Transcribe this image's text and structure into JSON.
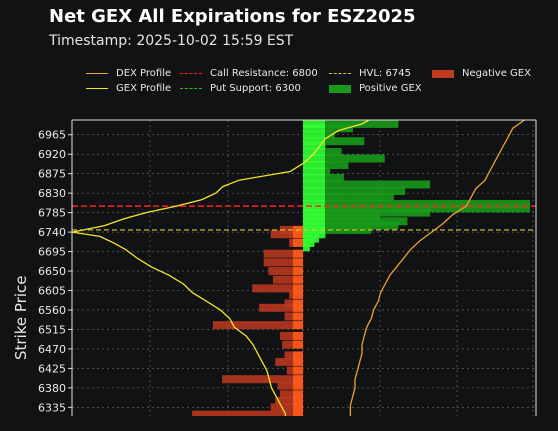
{
  "chart_data": {
    "type": "bar",
    "title": "Net GEX All Expirations for ESZ2025",
    "subtitle": "Timestamp: 2025-10-02 15:59 EST",
    "xlabel": "",
    "ylabel": "Strike Price",
    "orientation": "horizontal",
    "grid": true,
    "legend_position": "top",
    "strike_ticks": [
      6965,
      6920,
      6875,
      6830,
      6785,
      6740,
      6695,
      6650,
      6605,
      6560,
      6515,
      6470,
      6425,
      6380,
      6335
    ],
    "strike_range": [
      6315,
      6999
    ],
    "gex_xlim": [
      -100,
      100
    ],
    "profile_xlim": [
      -1,
      1
    ],
    "legend": {
      "dex_profile": "DEX Profile",
      "gex_profile": "GEX Profile",
      "call_resistance": "Call Resistance: 6800",
      "put_support": "Put Support: 6300",
      "hvl": "HVL: 6745",
      "positive_gex": "Positive GEX",
      "negative_gex": "Negative GEX"
    },
    "levels": {
      "call_resistance": 6800,
      "put_support": 6300,
      "hvl": 6745
    },
    "colors": {
      "background": "#111214",
      "dex_profile": "#f0a030",
      "gex_profile": "#f2e62a",
      "call_resistance": "#ff2020",
      "put_support": "#22c022",
      "hvl": "#d8c833",
      "positive_gex": "#1a9a1a",
      "negative_gex": "#c03a20",
      "grid": "#9a9a9a"
    },
    "positive_gex": [
      {
        "strike": 6990,
        "value": 42
      },
      {
        "strike": 6980,
        "value": 22
      },
      {
        "strike": 6965,
        "value": 14
      },
      {
        "strike": 6950,
        "value": 27
      },
      {
        "strike": 6940,
        "value": 10
      },
      {
        "strike": 6925,
        "value": 17
      },
      {
        "strike": 6910,
        "value": 36
      },
      {
        "strike": 6895,
        "value": 20
      },
      {
        "strike": 6880,
        "value": 12
      },
      {
        "strike": 6865,
        "value": 18
      },
      {
        "strike": 6850,
        "value": 56
      },
      {
        "strike": 6835,
        "value": 45
      },
      {
        "strike": 6820,
        "value": 40
      },
      {
        "strike": 6805,
        "value": 100
      },
      {
        "strike": 6795,
        "value": 100
      },
      {
        "strike": 6785,
        "value": 56
      },
      {
        "strike": 6775,
        "value": 34
      },
      {
        "strike": 6765,
        "value": 46
      },
      {
        "strike": 6755,
        "value": 42
      },
      {
        "strike": 6745,
        "value": 30
      },
      {
        "strike": 6735,
        "value": 10
      },
      {
        "strike": 6725,
        "value": 7
      },
      {
        "strike": 6715,
        "value": 5
      },
      {
        "strike": 6705,
        "value": 3
      }
    ],
    "negative_gex": [
      {
        "strike": 6745,
        "value": -10
      },
      {
        "strike": 6735,
        "value": -14
      },
      {
        "strike": 6715,
        "value": -6
      },
      {
        "strike": 6690,
        "value": -17
      },
      {
        "strike": 6670,
        "value": -17
      },
      {
        "strike": 6650,
        "value": -15
      },
      {
        "strike": 6630,
        "value": -13
      },
      {
        "strike": 6610,
        "value": -22
      },
      {
        "strike": 6595,
        "value": -6
      },
      {
        "strike": 6575,
        "value": -8
      },
      {
        "strike": 6565,
        "value": -19
      },
      {
        "strike": 6545,
        "value": -8
      },
      {
        "strike": 6525,
        "value": -39
      },
      {
        "strike": 6500,
        "value": -10
      },
      {
        "strike": 6480,
        "value": -9
      },
      {
        "strike": 6455,
        "value": -8
      },
      {
        "strike": 6440,
        "value": -12
      },
      {
        "strike": 6420,
        "value": -7
      },
      {
        "strike": 6400,
        "value": -35
      },
      {
        "strike": 6385,
        "value": -11
      },
      {
        "strike": 6365,
        "value": -10
      },
      {
        "strike": 6350,
        "value": -12
      },
      {
        "strike": 6335,
        "value": -14
      },
      {
        "strike": 6318,
        "value": -48
      }
    ],
    "gex_profile": [
      {
        "strike": 6999,
        "value": 0.28
      },
      {
        "strike": 6990,
        "value": 0.25
      },
      {
        "strike": 6975,
        "value": 0.15
      },
      {
        "strike": 6955,
        "value": 0.09
      },
      {
        "strike": 6940,
        "value": 0.07
      },
      {
        "strike": 6920,
        "value": 0.04
      },
      {
        "strike": 6900,
        "value": 0.0
      },
      {
        "strike": 6880,
        "value": -0.06
      },
      {
        "strike": 6860,
        "value": -0.28
      },
      {
        "strike": 6845,
        "value": -0.35
      },
      {
        "strike": 6830,
        "value": -0.38
      },
      {
        "strike": 6815,
        "value": -0.44
      },
      {
        "strike": 6800,
        "value": -0.55
      },
      {
        "strike": 6785,
        "value": -0.68
      },
      {
        "strike": 6770,
        "value": -0.78
      },
      {
        "strike": 6755,
        "value": -0.86
      },
      {
        "strike": 6745,
        "value": -0.95
      },
      {
        "strike": 6740,
        "value": -1.0
      },
      {
        "strike": 6730,
        "value": -0.88
      },
      {
        "strike": 6715,
        "value": -0.82
      },
      {
        "strike": 6700,
        "value": -0.77
      },
      {
        "strike": 6680,
        "value": -0.72
      },
      {
        "strike": 6660,
        "value": -0.66
      },
      {
        "strike": 6640,
        "value": -0.58
      },
      {
        "strike": 6620,
        "value": -0.52
      },
      {
        "strike": 6600,
        "value": -0.48
      },
      {
        "strike": 6580,
        "value": -0.42
      },
      {
        "strike": 6560,
        "value": -0.36
      },
      {
        "strike": 6540,
        "value": -0.32
      },
      {
        "strike": 6520,
        "value": -0.3
      },
      {
        "strike": 6500,
        "value": -0.25
      },
      {
        "strike": 6480,
        "value": -0.22
      },
      {
        "strike": 6460,
        "value": -0.2
      },
      {
        "strike": 6440,
        "value": -0.18
      },
      {
        "strike": 6420,
        "value": -0.16
      },
      {
        "strike": 6400,
        "value": -0.15
      },
      {
        "strike": 6380,
        "value": -0.14
      },
      {
        "strike": 6360,
        "value": -0.12
      },
      {
        "strike": 6340,
        "value": -0.1
      },
      {
        "strike": 6320,
        "value": -0.08
      },
      {
        "strike": 6315,
        "value": -0.08
      }
    ],
    "dex_profile": [
      {
        "strike": 6999,
        "value": 0.95
      },
      {
        "strike": 6980,
        "value": 0.9
      },
      {
        "strike": 6960,
        "value": 0.88
      },
      {
        "strike": 6940,
        "value": 0.86
      },
      {
        "strike": 6920,
        "value": 0.84
      },
      {
        "strike": 6900,
        "value": 0.82
      },
      {
        "strike": 6880,
        "value": 0.8
      },
      {
        "strike": 6860,
        "value": 0.78
      },
      {
        "strike": 6840,
        "value": 0.74
      },
      {
        "strike": 6820,
        "value": 0.72
      },
      {
        "strike": 6800,
        "value": 0.7
      },
      {
        "strike": 6780,
        "value": 0.64
      },
      {
        "strike": 6760,
        "value": 0.6
      },
      {
        "strike": 6740,
        "value": 0.55
      },
      {
        "strike": 6720,
        "value": 0.5
      },
      {
        "strike": 6700,
        "value": 0.46
      },
      {
        "strike": 6680,
        "value": 0.43
      },
      {
        "strike": 6660,
        "value": 0.4
      },
      {
        "strike": 6640,
        "value": 0.37
      },
      {
        "strike": 6620,
        "value": 0.35
      },
      {
        "strike": 6600,
        "value": 0.33
      },
      {
        "strike": 6580,
        "value": 0.32
      },
      {
        "strike": 6560,
        "value": 0.3
      },
      {
        "strike": 6540,
        "value": 0.29
      },
      {
        "strike": 6520,
        "value": 0.27
      },
      {
        "strike": 6500,
        "value": 0.26
      },
      {
        "strike": 6480,
        "value": 0.25
      },
      {
        "strike": 6460,
        "value": 0.25
      },
      {
        "strike": 6440,
        "value": 0.24
      },
      {
        "strike": 6420,
        "value": 0.23
      },
      {
        "strike": 6400,
        "value": 0.22
      },
      {
        "strike": 6380,
        "value": 0.22
      },
      {
        "strike": 6360,
        "value": 0.21
      },
      {
        "strike": 6340,
        "value": 0.2
      },
      {
        "strike": 6320,
        "value": 0.2
      },
      {
        "strike": 6315,
        "value": 0.2
      }
    ]
  }
}
